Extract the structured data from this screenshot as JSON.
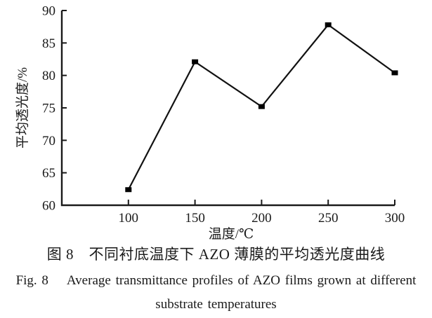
{
  "figure": {
    "caption_cn": "图 8　不同衬底温度下 AZO 薄膜的平均透光度曲线",
    "caption_en_line1": "Fig. 8    Average transmittance profiles of AZO films grown at different",
    "caption_en_line2": "substrate temperatures"
  },
  "colors": {
    "ink": "#1a1a1a",
    "line": "#111111",
    "marker": "#000000"
  },
  "chart_data": {
    "type": "line",
    "title": "",
    "xlabel": "温度/℃",
    "ylabel": "平均透光度/%",
    "x": [
      100,
      150,
      200,
      250,
      300
    ],
    "values": [
      62.4,
      82.1,
      75.2,
      87.8,
      80.4
    ],
    "series_name": "average-transmittance",
    "xlim": [
      50,
      300
    ],
    "ylim": [
      60,
      90
    ],
    "xticks": [
      100,
      150,
      200,
      250,
      300
    ],
    "yticks": [
      60,
      65,
      70,
      75,
      80,
      85,
      90
    ],
    "grid": false,
    "legend": "none",
    "marker": "filled-square"
  }
}
